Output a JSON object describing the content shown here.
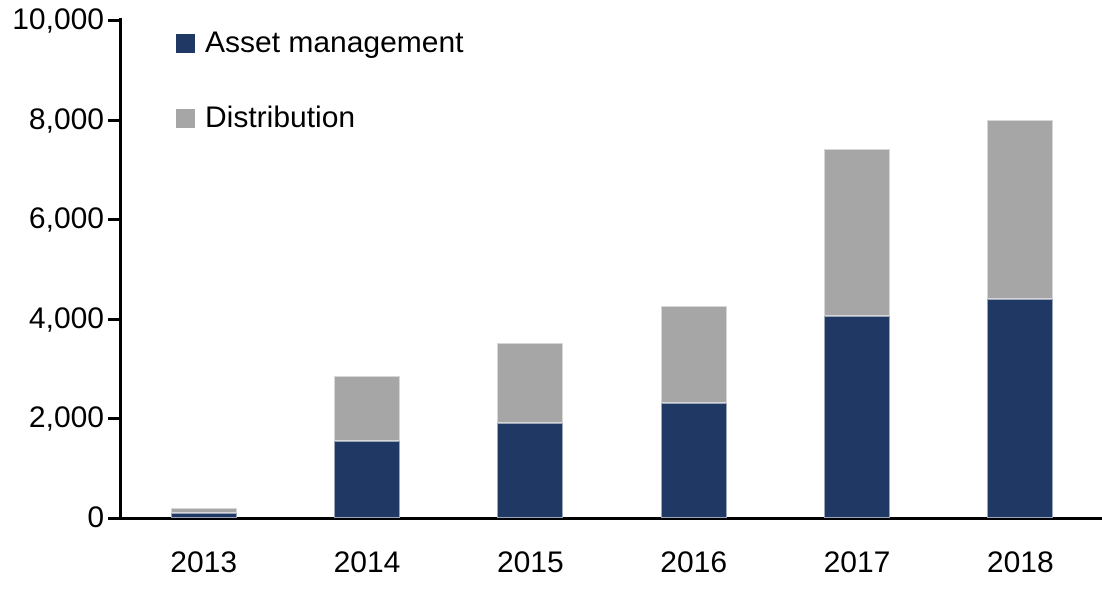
{
  "chart_data": {
    "type": "bar",
    "stacked": true,
    "title": "",
    "xlabel": "",
    "ylabel": "",
    "categories": [
      "2013",
      "2014",
      "2015",
      "2016",
      "2017",
      "2018"
    ],
    "series": [
      {
        "name": "Asset management",
        "color": "#1F3864",
        "values": [
          100,
          1550,
          1900,
          2300,
          4050,
          4400
        ]
      },
      {
        "name": "Distribution",
        "color": "#A6A6A6",
        "values": [
          100,
          1300,
          1600,
          1950,
          3350,
          3600
        ]
      }
    ],
    "ylim": [
      0,
      10000
    ],
    "ytick_values": [
      0,
      2000,
      4000,
      6000,
      8000,
      10000
    ],
    "ytick_labels": [
      "0",
      "2,000",
      "4,000",
      "6,000",
      "8,000",
      "10,000"
    ],
    "legend_position": "top-left",
    "grid": false,
    "axis_color": "#000000",
    "background_color": "#FFFFFF"
  }
}
